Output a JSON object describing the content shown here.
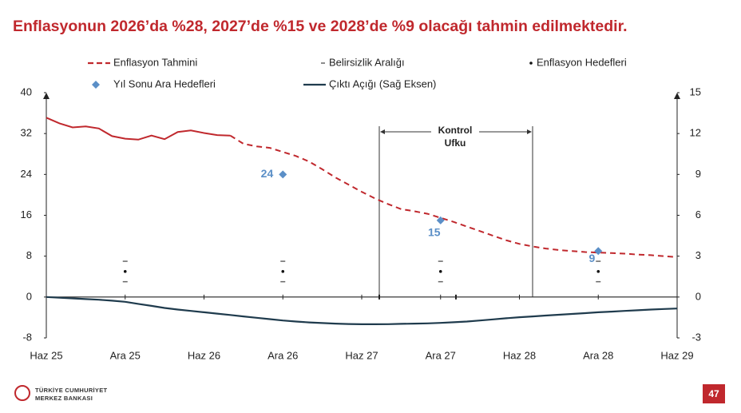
{
  "chart_data": {
    "type": "line",
    "title": "Enflasyonun 2026’da %28, 2027’de %15 ve 2028’de %9 olacağı tahmin edilmektedir.",
    "categories": [
      "Haz 25",
      null,
      null,
      null,
      null,
      null,
      "Ara 25",
      null,
      null,
      null,
      null,
      null,
      "Haz 26",
      null,
      null,
      null,
      null,
      null,
      "Ara 26",
      null,
      null,
      null,
      null,
      null,
      "Haz 27",
      null,
      null,
      null,
      null,
      null,
      "Ara 27",
      null,
      null,
      null,
      null,
      null,
      "Haz 28",
      null,
      null,
      null,
      null,
      null,
      "Ara 28",
      null,
      null,
      null,
      null,
      null,
      "Haz 29"
    ],
    "ylim": [
      -8,
      40
    ],
    "yticks": [
      -8,
      0,
      8,
      16,
      24,
      32,
      40
    ],
    "y2lim": [
      -3,
      15
    ],
    "y2ticks": [
      -3,
      0,
      3,
      6,
      9,
      12,
      15
    ],
    "annotation": "Kontrol Ufku",
    "series": [
      {
        "color": "#c0282d",
        "style": "solid",
        "values": [
          35.1,
          34.0,
          33.2,
          33.4,
          33.0,
          31.5,
          31.0,
          30.8,
          31.6,
          30.9,
          32.3,
          32.6,
          32.1,
          31.7,
          31.6,
          null,
          null,
          null,
          null,
          null,
          null,
          null,
          null,
          null,
          null,
          null,
          null,
          null,
          null,
          null,
          null,
          null,
          null,
          null,
          null,
          null,
          null,
          null,
          null,
          null,
          null,
          null,
          null,
          null,
          null,
          null,
          null,
          null,
          null
        ]
      },
      {
        "name": "Enflasyon Tahmini",
        "color": "#c0282d",
        "style": "dashed",
        "values": [
          null,
          null,
          null,
          null,
          null,
          null,
          null,
          null,
          null,
          null,
          null,
          null,
          null,
          null,
          31.6,
          30.0,
          29.5,
          29.2,
          28.4,
          27.6,
          26.5,
          25.0,
          23.4,
          22.0,
          20.6,
          19.3,
          18.2,
          17.2,
          16.8,
          16.3,
          15.5,
          14.7,
          13.8,
          12.9,
          12.0,
          11.1,
          10.4,
          9.9,
          9.5,
          9.2,
          9.0,
          8.8,
          8.7,
          8.6,
          8.5,
          8.3,
          8.2,
          8.0,
          7.8
        ]
      },
      {
        "name": "Belirsizlik Aralığı",
        "color": "#666666",
        "marker": "dash",
        "low": [
          null,
          null,
          null,
          null,
          null,
          null,
          3,
          null,
          null,
          null,
          null,
          null,
          null,
          null,
          null,
          null,
          null,
          null,
          3,
          null,
          null,
          null,
          null,
          null,
          null,
          null,
          null,
          null,
          null,
          null,
          3,
          null,
          null,
          null,
          null,
          null,
          null,
          null,
          null,
          null,
          null,
          null,
          3,
          null,
          null,
          null,
          null,
          null,
          null
        ],
        "high": [
          null,
          null,
          null,
          null,
          null,
          null,
          7,
          null,
          null,
          null,
          null,
          null,
          null,
          null,
          null,
          null,
          null,
          null,
          7,
          null,
          null,
          null,
          null,
          null,
          null,
          null,
          null,
          null,
          null,
          null,
          7,
          null,
          null,
          null,
          null,
          null,
          null,
          null,
          null,
          null,
          null,
          null,
          7,
          null,
          null,
          null,
          null,
          null,
          null
        ]
      },
      {
        "name": "Enflasyon Hedefleri",
        "color": "#111111",
        "marker": "dot",
        "values": [
          null,
          null,
          null,
          null,
          null,
          null,
          5,
          null,
          null,
          null,
          null,
          null,
          null,
          null,
          null,
          null,
          null,
          null,
          5,
          null,
          null,
          null,
          null,
          null,
          null,
          null,
          null,
          null,
          null,
          null,
          5,
          null,
          null,
          null,
          null,
          null,
          null,
          null,
          null,
          null,
          null,
          null,
          5,
          null,
          null,
          null,
          null,
          null,
          null
        ]
      },
      {
        "name": "Yıl Sonu Ara Hedefleri",
        "color": "#5b8fc7",
        "marker": "diamond",
        "values": [
          null,
          null,
          null,
          null,
          null,
          null,
          null,
          null,
          null,
          null,
          null,
          null,
          null,
          null,
          null,
          null,
          null,
          null,
          24,
          null,
          null,
          null,
          null,
          null,
          null,
          null,
          null,
          null,
          null,
          null,
          15,
          null,
          null,
          null,
          null,
          null,
          null,
          null,
          null,
          null,
          null,
          null,
          9,
          null,
          null,
          null,
          null,
          null,
          null
        ]
      },
      {
        "name": "Çıktı Açığı (Sağ Eksen)",
        "color": "#1f3b4d",
        "style": "solid",
        "axis": "y2",
        "values": [
          0,
          -0.05,
          -0.1,
          -0.15,
          -0.2,
          -0.27,
          -0.35,
          -0.5,
          -0.65,
          -0.8,
          -0.92,
          -1.02,
          -1.12,
          -1.22,
          -1.32,
          -1.42,
          -1.52,
          -1.62,
          -1.72,
          -1.8,
          -1.86,
          -1.91,
          -1.95,
          -1.98,
          -2.0,
          -2.0,
          -1.99,
          -1.97,
          -1.95,
          -1.93,
          -1.9,
          -1.85,
          -1.8,
          -1.72,
          -1.64,
          -1.56,
          -1.48,
          -1.42,
          -1.36,
          -1.3,
          -1.24,
          -1.18,
          -1.12,
          -1.07,
          -1.02,
          -0.97,
          -0.92,
          -0.88,
          -0.84
        ]
      }
    ]
  },
  "footer": {
    "bank_line1": "TÜRKİYE CUMHURİYET",
    "bank_line2": "MERKEZ BANKASI",
    "page_number": "47"
  }
}
